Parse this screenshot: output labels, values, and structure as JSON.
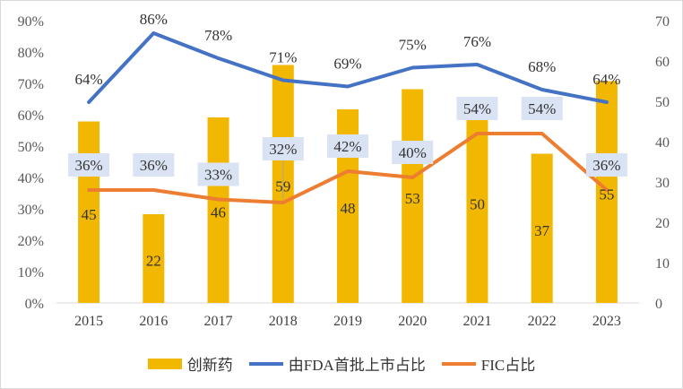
{
  "chart_data": {
    "type": "bar+line",
    "categories": [
      "2015",
      "2016",
      "2017",
      "2018",
      "2019",
      "2020",
      "2021",
      "2022",
      "2023"
    ],
    "series": [
      {
        "name": "创新药",
        "kind": "bar",
        "axis": "right",
        "color": "#F2B700",
        "values": [
          45,
          22,
          46,
          59,
          48,
          53,
          50,
          37,
          55
        ]
      },
      {
        "name": "由FDA首批上市占比",
        "kind": "line",
        "axis": "left",
        "color": "#4472C4",
        "values": [
          64,
          86,
          78,
          71,
          69,
          75,
          76,
          68,
          64
        ]
      },
      {
        "name": "FIC占比",
        "kind": "line",
        "axis": "left",
        "color": "#ED7D31",
        "values": [
          36,
          36,
          33,
          32,
          42,
          40,
          54,
          54,
          36
        ]
      }
    ],
    "left_axis": {
      "ylim": [
        0,
        90
      ],
      "ticks": [
        "0%",
        "10%",
        "20%",
        "30%",
        "40%",
        "50%",
        "60%",
        "70%",
        "80%",
        "90%"
      ]
    },
    "right_axis": {
      "ylim": [
        0,
        70
      ],
      "ticks": [
        "0",
        "10",
        "20",
        "30",
        "40",
        "50",
        "60",
        "70"
      ]
    },
    "label_box_color": "#DAE3F3",
    "grid": false,
    "legend_position": "bottom"
  }
}
